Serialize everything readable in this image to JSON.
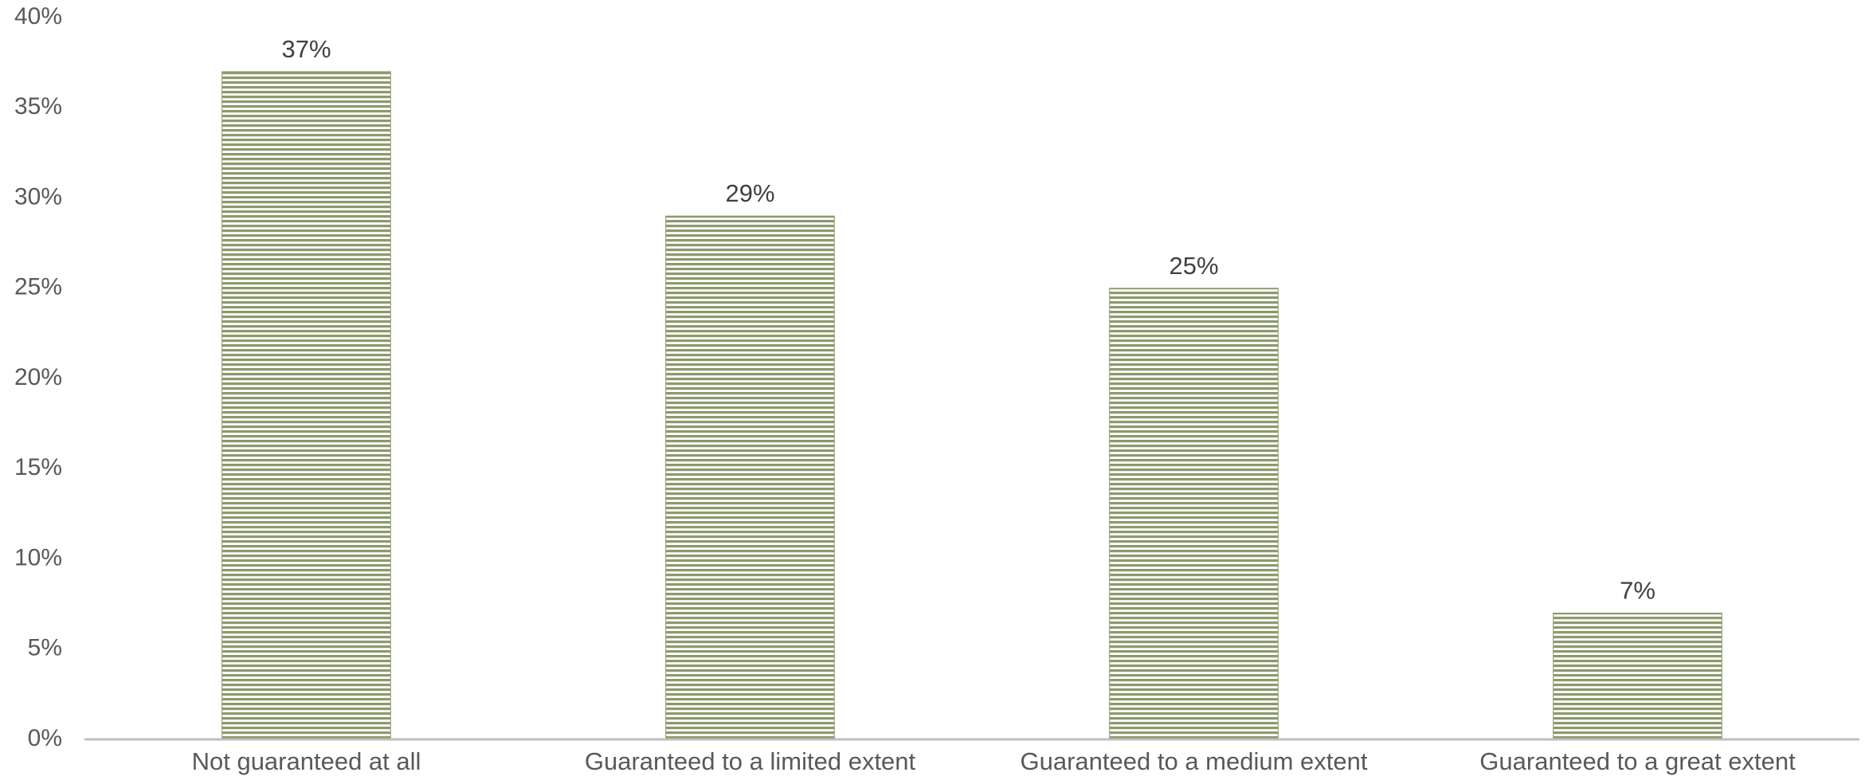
{
  "chart_data": {
    "type": "bar",
    "title": "",
    "xlabel": "",
    "ylabel": "",
    "categories": [
      "Not guaranteed at all",
      "Guaranteed to a limited extent",
      "Guaranteed to a medium extent",
      "Guaranteed to a great extent"
    ],
    "values": [
      37,
      29,
      25,
      7
    ],
    "value_labels": [
      "37%",
      "29%",
      "25%",
      "7%"
    ],
    "ylim": [
      0,
      40
    ],
    "y_ticks": [
      0,
      5,
      10,
      15,
      20,
      25,
      30,
      35,
      40
    ],
    "y_tick_labels": [
      "0%",
      "5%",
      "10%",
      "15%",
      "20%",
      "25%",
      "30%",
      "35%",
      "40%"
    ],
    "grid": false,
    "legend": "none",
    "bar_pattern": "horizontal-stripes",
    "colors": {
      "bar_fill": "#8c9a6c",
      "bar_stripe": "#ffffff",
      "axis": "#bfbfbf",
      "tick_text": "#595959",
      "label_text": "#404040"
    }
  }
}
